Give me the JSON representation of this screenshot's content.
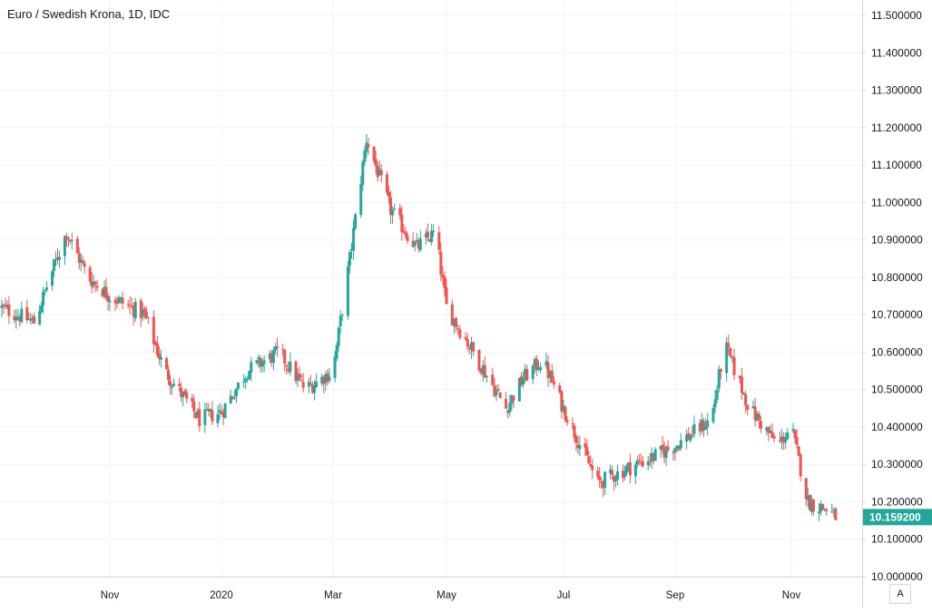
{
  "chart_data": {
    "type": "candlestick",
    "title": "Euro / Swedish Krona, 1D, IDC",
    "x_tick_labels": [
      "Nov",
      "2020",
      "Mar",
      "May",
      "Jul",
      "Sep",
      "Nov"
    ],
    "y_tick_labels": [
      "11.500000",
      "11.400000",
      "11.300000",
      "11.200000",
      "11.100000",
      "11.000000",
      "10.900000",
      "10.800000",
      "10.700000",
      "10.600000",
      "10.500000",
      "10.400000",
      "10.300000",
      "10.200000",
      "10.100000",
      "10.000000"
    ],
    "ylim": [
      10.0,
      11.5
    ],
    "last_price": "10.159200",
    "grid": true,
    "colors": {
      "up": "#26a69a",
      "down": "#ef5350",
      "grid": "#f0f3fa",
      "axis": "#d1d4dc",
      "text": "#131722",
      "last_price_bg": "#26a69a"
    },
    "approx_close_path": [
      {
        "x": "2019-09-01",
        "close": 10.72
      },
      {
        "x": "2019-09-20",
        "close": 10.68
      },
      {
        "x": "2019-10-01",
        "close": 10.83
      },
      {
        "x": "2019-10-08",
        "close": 10.92
      },
      {
        "x": "2019-10-20",
        "close": 10.8
      },
      {
        "x": "2019-11-01",
        "close": 10.75
      },
      {
        "x": "2019-11-20",
        "close": 10.7
      },
      {
        "x": "2019-12-01",
        "close": 10.55
      },
      {
        "x": "2019-12-20",
        "close": 10.42
      },
      {
        "x": "2020-01-01",
        "close": 10.44
      },
      {
        "x": "2020-01-15",
        "close": 10.55
      },
      {
        "x": "2020-02-01",
        "close": 10.6
      },
      {
        "x": "2020-02-15",
        "close": 10.5
      },
      {
        "x": "2020-03-01",
        "close": 10.55
      },
      {
        "x": "2020-03-10",
        "close": 10.85
      },
      {
        "x": "2020-03-19",
        "close": 11.17
      },
      {
        "x": "2020-04-01",
        "close": 10.98
      },
      {
        "x": "2020-04-15",
        "close": 10.88
      },
      {
        "x": "2020-04-25",
        "close": 10.92
      },
      {
        "x": "2020-05-01",
        "close": 10.72
      },
      {
        "x": "2020-05-15",
        "close": 10.6
      },
      {
        "x": "2020-06-01",
        "close": 10.45
      },
      {
        "x": "2020-06-10",
        "close": 10.53
      },
      {
        "x": "2020-06-20",
        "close": 10.58
      },
      {
        "x": "2020-07-01",
        "close": 10.45
      },
      {
        "x": "2020-07-20",
        "close": 10.25
      },
      {
        "x": "2020-08-10",
        "close": 10.3
      },
      {
        "x": "2020-08-20",
        "close": 10.32
      },
      {
        "x": "2020-09-01",
        "close": 10.35
      },
      {
        "x": "2020-09-20",
        "close": 10.42
      },
      {
        "x": "2020-09-27",
        "close": 10.62
      },
      {
        "x": "2020-10-10",
        "close": 10.45
      },
      {
        "x": "2020-10-25",
        "close": 10.35
      },
      {
        "x": "2020-11-01",
        "close": 10.4
      },
      {
        "x": "2020-11-10",
        "close": 10.2
      },
      {
        "x": "2020-11-20",
        "close": 10.18
      },
      {
        "x": "2020-11-25",
        "close": 10.16
      }
    ]
  },
  "ui": {
    "auto_label": "A"
  }
}
